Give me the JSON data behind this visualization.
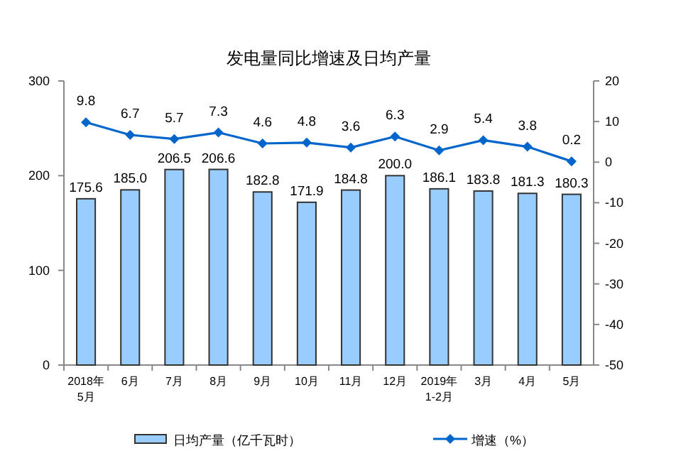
{
  "chart_data": {
    "type": "bar",
    "title": "发电量同比增速及日均产量",
    "categories": [
      "2018年\n5月",
      "6月",
      "7月",
      "8月",
      "9月",
      "10月",
      "11月",
      "12月",
      "2019年\n1-2月",
      "3月",
      "4月",
      "5月"
    ],
    "series": [
      {
        "name": "日均产量（亿千瓦时）",
        "color": "#99ccff",
        "values": [
          175.6,
          185.0,
          206.5,
          206.6,
          182.8,
          171.9,
          184.8,
          200.0,
          186.1,
          183.8,
          181.3,
          180.3
        ],
        "value_labels": [
          "175.6",
          "185.0",
          "206.5",
          "206.6",
          "182.8",
          "171.9",
          "184.8",
          "200.0",
          "186.1",
          "183.8",
          "181.3",
          "180.3"
        ]
      },
      {
        "name": "增速（%）",
        "type": "line",
        "axis": "y2",
        "color": "#0066cc",
        "marker": "diamond",
        "values": [
          9.8,
          6.7,
          5.7,
          7.3,
          4.6,
          4.8,
          3.6,
          6.3,
          2.9,
          5.4,
          3.8,
          0.2
        ],
        "value_labels": [
          "9.8",
          "6.7",
          "5.7",
          "7.3",
          "4.6",
          "4.8",
          "3.6",
          "6.3",
          "2.9",
          "5.4",
          "3.8",
          "0.2"
        ]
      }
    ],
    "ylim": [
      0,
      300
    ],
    "yticks": [
      0,
      100,
      200,
      300
    ],
    "y2lim": [
      -50,
      20
    ],
    "y2ticks": [
      -50,
      -40,
      -30,
      -20,
      -10,
      0,
      10,
      20
    ],
    "legend": "bottom",
    "grid": false
  }
}
